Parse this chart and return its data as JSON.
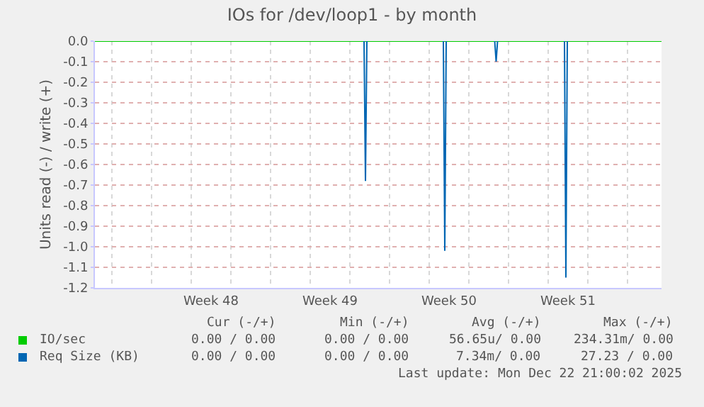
{
  "chart_data": {
    "type": "line",
    "title": "IOs for /dev/loop1 - by month",
    "ylabel": "Units read (-) / write (+)",
    "xlim": [
      "2025-11-20T16:00",
      "2025-12-24T00:00"
    ],
    "xticks": [
      {
        "value": "2025-11-27T12:00",
        "label": "Week 48"
      },
      {
        "value": "2025-12-04T12:00",
        "label": "Week 49"
      },
      {
        "value": "2025-12-11T12:00",
        "label": "Week 50"
      },
      {
        "value": "2025-12-18T12:00",
        "label": "Week 51"
      }
    ],
    "ylim": [
      -1.2,
      0
    ],
    "yticks": [
      {
        "value": 0,
        "label": "0.0"
      },
      {
        "value": -0.1,
        "label": "-0.1"
      },
      {
        "value": -0.2,
        "label": "-0.2"
      },
      {
        "value": -0.3,
        "label": "-0.3"
      },
      {
        "value": -0.4,
        "label": "-0.4"
      },
      {
        "value": -0.5,
        "label": "-0.5"
      },
      {
        "value": -0.6,
        "label": "-0.6"
      },
      {
        "value": -0.7,
        "label": "-0.7"
      },
      {
        "value": -0.8,
        "label": "-0.8"
      },
      {
        "value": -0.9,
        "label": "-0.9"
      },
      {
        "value": -1.0,
        "label": "-1.0"
      },
      {
        "value": -1.1,
        "label": "-1.1"
      },
      {
        "value": -1.2,
        "label": "-1.2"
      }
    ],
    "grid": true,
    "legend": "bottom left",
    "series": [
      {
        "name": "IO/sec",
        "color": "#00cc00",
        "x": [
          "2025-11-20T16:00",
          "2025-12-24T00:00"
        ],
        "values": [
          0,
          0
        ]
      },
      {
        "name": "Req Size (KB)",
        "color": "#0066b3",
        "x": [
          "2025-12-06T12:00",
          "2025-12-06T14:00",
          "2025-12-06T16:00",
          "2025-12-08T00:00",
          "2025-12-11T04:00",
          "2025-12-11T06:00",
          "2025-12-11T08:00",
          "2025-12-12T00:00",
          "2025-12-14T04:30",
          "2025-12-14T06:30",
          "2025-12-14T08:30",
          "2025-12-16T00:00",
          "2025-12-18T07:00",
          "2025-12-18T09:00",
          "2025-12-18T11:00"
        ],
        "values": [
          0,
          -0.68,
          0,
          null,
          0,
          -1.02,
          0,
          null,
          0,
          -0.1,
          0,
          null,
          0,
          -1.15,
          0
        ]
      }
    ],
    "annotations": [
      "Cur (-/+)",
      "Min (-/+)",
      "Avg (-/+)",
      "Max (-/+)",
      "0.00 / 0.00",
      "0.00 / 0.00",
      "56.65u/ 0.00",
      "234.31m/ 0.00",
      "0.00 / 0.00",
      "0.00 / 0.00",
      "7.34m/ 0.00",
      "27.23 / 0.00",
      "Last update: Mon Dec 22 21:00:02 2025"
    ]
  }
}
